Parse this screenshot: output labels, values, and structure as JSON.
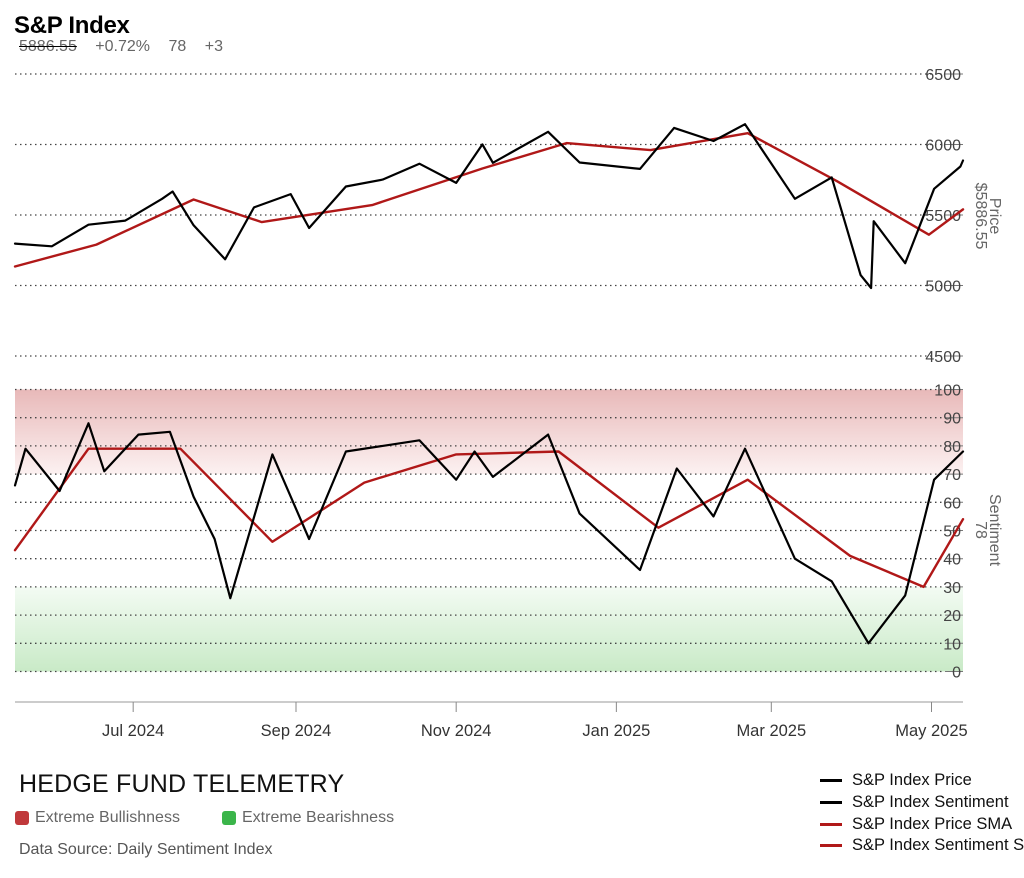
{
  "header": {
    "title": "S&P Index",
    "price": "5886.55",
    "change": "+0.72%",
    "sentiment": "78",
    "sentiment_change": "+3"
  },
  "footer": {
    "brand": "HEDGE FUND TELEMETRY",
    "extreme_bullish_label": "Extreme Bullishness",
    "extreme_bearish_label": "Extreme Bearishness",
    "source": "Data Source: Daily Sentiment Index"
  },
  "colors": {
    "price": "#000000",
    "sentiment": "#000000",
    "sma": "#b01818",
    "bullish": "#c0393b",
    "bearish": "#3bb54a"
  },
  "chart_data": {
    "type": "line",
    "x_tick_labels": [
      "Jul 2024",
      "Sep 2024",
      "Nov 2024",
      "Jan 2025",
      "Mar 2025",
      "May 2025"
    ],
    "x_tick_dates": [
      "2024-07-01",
      "2024-09-01",
      "2024-11-01",
      "2025-01-01",
      "2025-03-01",
      "2025-05-01"
    ],
    "x_range": [
      "2024-05-17",
      "2025-05-13"
    ],
    "price_axis": {
      "label": "Price",
      "current_label": "$5886.55",
      "ticks": [
        4500,
        5000,
        5500,
        6000,
        6500
      ],
      "ylim": [
        4500,
        6500
      ]
    },
    "sentiment_axis": {
      "label": "Sentiment",
      "current_label": "78",
      "ticks": [
        0,
        10,
        20,
        30,
        40,
        50,
        60,
        70,
        80,
        90,
        100
      ],
      "ylim": [
        0,
        100
      ]
    },
    "zones": {
      "extreme_bullish": [
        70,
        100
      ],
      "extreme_bearish": [
        0,
        30
      ]
    },
    "grid": "dotted horizontal",
    "legend_position": "bottom-right",
    "series": [
      {
        "name": "S&P Index Price",
        "axis": "price",
        "points": [
          [
            "2024-05-17",
            5297
          ],
          [
            "2024-05-31",
            5278
          ],
          [
            "2024-06-14",
            5431
          ],
          [
            "2024-06-28",
            5460
          ],
          [
            "2024-07-12",
            5615
          ],
          [
            "2024-07-16",
            5667
          ],
          [
            "2024-07-24",
            5427
          ],
          [
            "2024-08-05",
            5186
          ],
          [
            "2024-08-16",
            5554
          ],
          [
            "2024-08-30",
            5648
          ],
          [
            "2024-09-06",
            5408
          ],
          [
            "2024-09-20",
            5702
          ],
          [
            "2024-10-04",
            5751
          ],
          [
            "2024-10-18",
            5864
          ],
          [
            "2024-11-01",
            5728
          ],
          [
            "2024-11-11",
            6001
          ],
          [
            "2024-11-15",
            5870
          ],
          [
            "2024-12-06",
            6090
          ],
          [
            "2024-12-18",
            5872
          ],
          [
            "2025-01-10",
            5827
          ],
          [
            "2025-01-23",
            6118
          ],
          [
            "2025-02-07",
            6025
          ],
          [
            "2025-02-19",
            6144
          ],
          [
            "2025-03-10",
            5615
          ],
          [
            "2025-03-24",
            5767
          ],
          [
            "2025-04-04",
            5074
          ],
          [
            "2025-04-08",
            4982
          ],
          [
            "2025-04-09",
            5456
          ],
          [
            "2025-04-21",
            5158
          ],
          [
            "2025-05-02",
            5686
          ],
          [
            "2025-05-12",
            5844
          ],
          [
            "2025-05-13",
            5886.55
          ]
        ]
      },
      {
        "name": "S&P Index Sentiment",
        "axis": "sentiment",
        "points": [
          [
            "2024-05-17",
            66
          ],
          [
            "2024-05-21",
            79
          ],
          [
            "2024-06-03",
            64
          ],
          [
            "2024-06-14",
            88
          ],
          [
            "2024-06-20",
            71
          ],
          [
            "2024-07-03",
            84
          ],
          [
            "2024-07-15",
            85
          ],
          [
            "2024-07-24",
            62
          ],
          [
            "2024-08-01",
            47
          ],
          [
            "2024-08-07",
            26
          ],
          [
            "2024-08-23",
            77
          ],
          [
            "2024-09-06",
            47
          ],
          [
            "2024-09-20",
            78
          ],
          [
            "2024-10-04",
            80
          ],
          [
            "2024-10-18",
            82
          ],
          [
            "2024-11-01",
            68
          ],
          [
            "2024-11-08",
            78
          ],
          [
            "2024-11-15",
            69
          ],
          [
            "2024-12-06",
            84
          ],
          [
            "2024-12-18",
            56
          ],
          [
            "2025-01-10",
            36
          ],
          [
            "2025-01-24",
            72
          ],
          [
            "2025-02-07",
            55
          ],
          [
            "2025-02-19",
            79
          ],
          [
            "2025-03-10",
            40
          ],
          [
            "2025-03-24",
            32
          ],
          [
            "2025-04-07",
            10
          ],
          [
            "2025-04-21",
            27
          ],
          [
            "2025-05-02",
            68
          ],
          [
            "2025-05-13",
            78
          ]
        ]
      },
      {
        "name": "S&P Index Price SMA",
        "axis": "price",
        "points": [
          [
            "2024-05-17",
            5135
          ],
          [
            "2024-06-17",
            5290
          ],
          [
            "2024-07-24",
            5610
          ],
          [
            "2024-08-19",
            5450
          ],
          [
            "2024-09-30",
            5570
          ],
          [
            "2024-11-11",
            5830
          ],
          [
            "2024-12-13",
            6010
          ],
          [
            "2025-01-14",
            5960
          ],
          [
            "2025-02-20",
            6080
          ],
          [
            "2025-03-26",
            5740
          ],
          [
            "2025-04-30",
            5360
          ],
          [
            "2025-05-13",
            5540
          ]
        ]
      },
      {
        "name": "S&P Index Sentiment SMA",
        "axis": "sentiment",
        "points": [
          [
            "2024-05-17",
            43
          ],
          [
            "2024-06-14",
            79
          ],
          [
            "2024-07-19",
            79
          ],
          [
            "2024-08-23",
            46
          ],
          [
            "2024-09-27",
            67
          ],
          [
            "2024-11-01",
            77
          ],
          [
            "2024-12-10",
            78
          ],
          [
            "2025-01-17",
            51
          ],
          [
            "2025-02-20",
            68
          ],
          [
            "2025-03-31",
            41
          ],
          [
            "2025-04-28",
            30
          ],
          [
            "2025-05-13",
            54
          ]
        ]
      }
    ]
  }
}
